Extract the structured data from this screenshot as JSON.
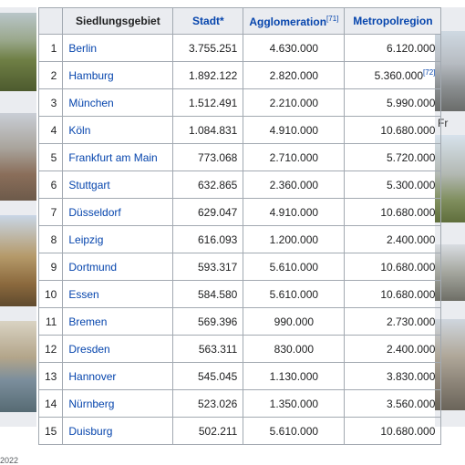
{
  "table": {
    "headers": {
      "settlement": "Siedlungsgebiet",
      "city": "Stadt*",
      "agglomeration": "Agglomeration",
      "agglomeration_ref": "[71]",
      "metropolitan": "Metropolregion"
    },
    "rows": [
      {
        "rank": "1",
        "name": "Berlin",
        "city": "3.755.251",
        "agglo": "4.630.000",
        "metro": "6.120.000",
        "metro_ref": ""
      },
      {
        "rank": "2",
        "name": "Hamburg",
        "city": "1.892.122",
        "agglo": "2.820.000",
        "metro": "5.360.000",
        "metro_ref": "[72]"
      },
      {
        "rank": "3",
        "name": "München",
        "city": "1.512.491",
        "agglo": "2.210.000",
        "metro": "5.990.000",
        "metro_ref": ""
      },
      {
        "rank": "4",
        "name": "Köln",
        "city": "1.084.831",
        "agglo": "4.910.000",
        "metro": "10.680.000",
        "metro_ref": ""
      },
      {
        "rank": "5",
        "name": "Frankfurt am Main",
        "city": "773.068",
        "agglo": "2.710.000",
        "metro": "5.720.000",
        "metro_ref": ""
      },
      {
        "rank": "6",
        "name": "Stuttgart",
        "city": "632.865",
        "agglo": "2.360.000",
        "metro": "5.300.000",
        "metro_ref": ""
      },
      {
        "rank": "7",
        "name": "Düsseldorf",
        "city": "629.047",
        "agglo": "4.910.000",
        "metro": "10.680.000",
        "metro_ref": ""
      },
      {
        "rank": "8",
        "name": "Leipzig",
        "city": "616.093",
        "agglo": "1.200.000",
        "metro": "2.400.000",
        "metro_ref": ""
      },
      {
        "rank": "9",
        "name": "Dortmund",
        "city": "593.317",
        "agglo": "5.610.000",
        "metro": "10.680.000",
        "metro_ref": ""
      },
      {
        "rank": "10",
        "name": "Essen",
        "city": "584.580",
        "agglo": "5.610.000",
        "metro": "10.680.000",
        "metro_ref": ""
      },
      {
        "rank": "11",
        "name": "Bremen",
        "city": "569.396",
        "agglo": "990.000",
        "metro": "2.730.000",
        "metro_ref": ""
      },
      {
        "rank": "12",
        "name": "Dresden",
        "city": "563.311",
        "agglo": "830.000",
        "metro": "2.400.000",
        "metro_ref": ""
      },
      {
        "rank": "13",
        "name": "Hannover",
        "city": "545.045",
        "agglo": "1.130.000",
        "metro": "3.830.000",
        "metro_ref": ""
      },
      {
        "rank": "14",
        "name": "Nürnberg",
        "city": "523.026",
        "agglo": "1.350.000",
        "metro": "3.560.000",
        "metro_ref": ""
      },
      {
        "rank": "15",
        "name": "Duisburg",
        "city": "502.211",
        "agglo": "5.610.000",
        "metro": "10.680.000",
        "metro_ref": ""
      }
    ]
  },
  "side_caption": "Fr",
  "footnote": "2022",
  "colors": {
    "link": "#0645ad",
    "header_bg": "#eaecf0",
    "border": "#a2a9b1"
  }
}
